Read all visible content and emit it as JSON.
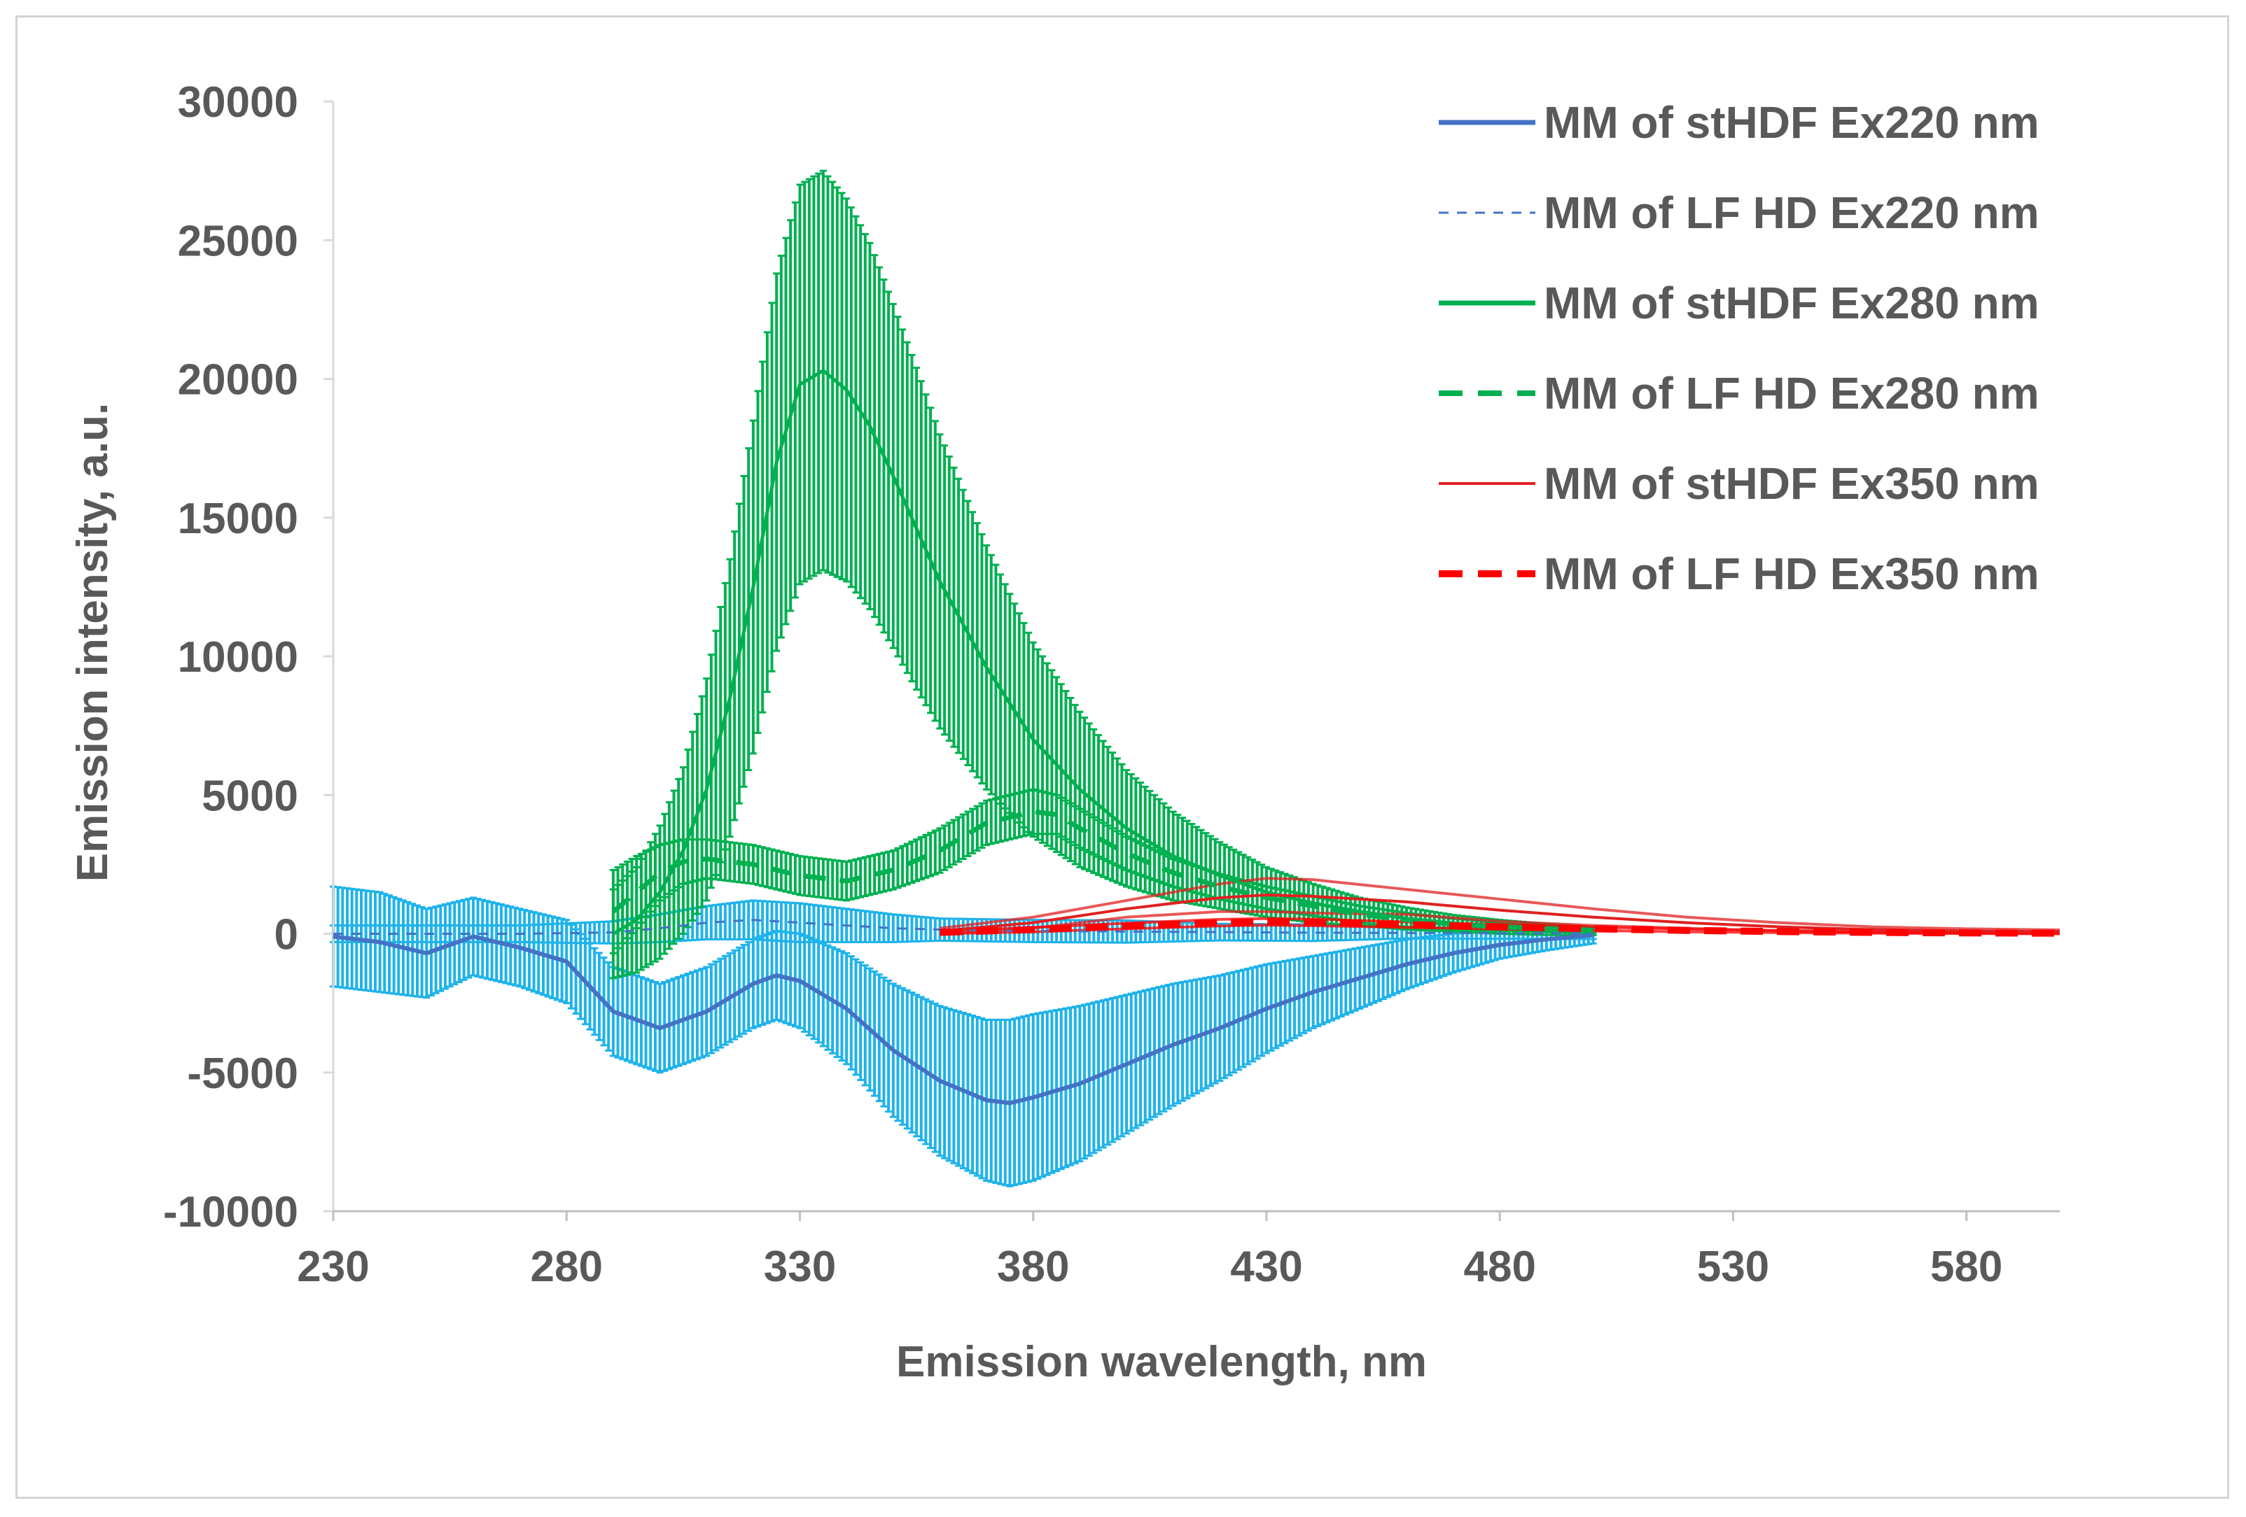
{
  "chart_data": {
    "type": "line",
    "title": "",
    "xlabel": "Emission wavelength, nm",
    "ylabel": "Emission intensity, a.u.",
    "xlim": [
      230,
      600
    ],
    "ylim": [
      -10000,
      30000
    ],
    "xticks": [
      230,
      280,
      330,
      380,
      430,
      480,
      530,
      580
    ],
    "yticks": [
      -10000,
      -5000,
      0,
      5000,
      10000,
      15000,
      20000,
      25000,
      30000
    ],
    "grid": false,
    "legend_position": "top-right",
    "error_color_220": "#1fb3ea",
    "error_color_280": "#00b050",
    "series": [
      {
        "name": "MM of stHDF Ex220 nm",
        "color": "#4472c4",
        "style": "solid",
        "x": [
          230,
          240,
          250,
          260,
          270,
          280,
          290,
          300,
          310,
          320,
          325,
          330,
          340,
          350,
          360,
          370,
          375,
          380,
          390,
          400,
          410,
          420,
          430,
          440,
          450,
          460,
          470,
          480,
          490,
          500
        ],
        "y": [
          -100,
          -300,
          -700,
          -100,
          -500,
          -1000,
          -2800,
          -3400,
          -2800,
          -1800,
          -1500,
          -1700,
          -2700,
          -4200,
          -5300,
          -6000,
          -6100,
          -5900,
          -5400,
          -4700,
          -4000,
          -3400,
          -2700,
          -2100,
          -1600,
          -1100,
          -700,
          -400,
          -200,
          -50
        ],
        "err": [
          1800,
          1800,
          1600,
          1400,
          1400,
          1500,
          1600,
          1600,
          1600,
          1600,
          1600,
          1700,
          2000,
          2400,
          2700,
          2900,
          3000,
          3000,
          2800,
          2500,
          2200,
          1900,
          1600,
          1300,
          1100,
          900,
          700,
          500,
          400,
          300
        ]
      },
      {
        "name": "MM of LF HD Ex220 nm",
        "color": "#4472c4",
        "style": "dashed",
        "x": [
          230,
          250,
          270,
          290,
          300,
          310,
          320,
          330,
          340,
          350,
          360,
          380,
          400,
          420,
          440,
          460,
          480,
          500
        ],
        "y": [
          0,
          0,
          0,
          50,
          200,
          400,
          500,
          400,
          300,
          200,
          150,
          100,
          80,
          60,
          40,
          30,
          20,
          10
        ],
        "err": [
          300,
          300,
          300,
          400,
          500,
          600,
          700,
          700,
          600,
          500,
          400,
          400,
          400,
          300,
          300,
          200,
          200,
          200
        ]
      },
      {
        "name": "MM of stHDF Ex280 nm",
        "color": "#00b050",
        "style": "solid",
        "x": [
          290,
          295,
          300,
          305,
          310,
          315,
          320,
          325,
          330,
          335,
          340,
          345,
          350,
          355,
          360,
          370,
          380,
          390,
          400,
          410,
          420,
          430,
          440,
          450,
          460,
          470,
          480,
          490,
          500
        ],
        "y": [
          0,
          500,
          1500,
          3000,
          5200,
          8500,
          12500,
          17000,
          19800,
          20300,
          19600,
          18300,
          16500,
          14600,
          12700,
          9600,
          7000,
          5200,
          3800,
          2800,
          2100,
          1500,
          1100,
          800,
          550,
          380,
          250,
          160,
          100
        ],
        "err": [
          1600,
          1900,
          2400,
          3000,
          4000,
          5000,
          6000,
          6800,
          7200,
          7200,
          6900,
          6600,
          6200,
          5800,
          5300,
          4400,
          3500,
          2800,
          2100,
          1600,
          1200,
          900,
          700,
          500,
          400,
          300,
          250,
          200,
          150
        ]
      },
      {
        "name": "MM of LF HD Ex280 nm",
        "color": "#00b050",
        "style": "dashed",
        "x": [
          290,
          295,
          300,
          305,
          310,
          320,
          330,
          340,
          350,
          360,
          370,
          380,
          385,
          390,
          400,
          410,
          420,
          430,
          440,
          450,
          460,
          470,
          480,
          490,
          500
        ],
        "y": [
          800,
          1500,
          2200,
          2600,
          2700,
          2500,
          2100,
          1900,
          2300,
          3000,
          4000,
          4400,
          4300,
          3800,
          2900,
          2200,
          1700,
          1300,
          1000,
          700,
          500,
          350,
          250,
          180,
          130
        ],
        "err": [
          1500,
          1300,
          1000,
          800,
          700,
          700,
          700,
          700,
          700,
          800,
          800,
          800,
          700,
          700,
          600,
          500,
          450,
          400,
          350,
          300,
          250,
          200,
          150,
          120,
          100
        ]
      },
      {
        "name": "MM of stHDF Ex350 nm",
        "color": "#e02020",
        "style": "solid",
        "x": [
          360,
          380,
          400,
          420,
          430,
          440,
          460,
          480,
          500,
          520,
          540,
          560,
          580,
          600
        ],
        "y": [
          100,
          400,
          900,
          1300,
          1400,
          1350,
          1150,
          850,
          600,
          400,
          250,
          150,
          100,
          80
        ],
        "err": [
          100,
          200,
          300,
          500,
          600,
          600,
          450,
          400,
          300,
          200,
          150,
          100,
          80,
          60
        ]
      },
      {
        "name": "MM of LF HD Ex350 nm",
        "color": "#ff0000",
        "style": "dashed",
        "x": [
          360,
          380,
          400,
          420,
          430,
          440,
          460,
          480,
          500,
          520,
          540,
          560,
          580,
          600
        ],
        "y": [
          50,
          150,
          280,
          400,
          430,
          410,
          330,
          250,
          180,
          120,
          80,
          50,
          30,
          20
        ],
        "err": [
          50,
          80,
          100,
          120,
          120,
          120,
          100,
          80,
          60,
          50,
          40,
          30,
          20,
          20
        ]
      }
    ]
  }
}
